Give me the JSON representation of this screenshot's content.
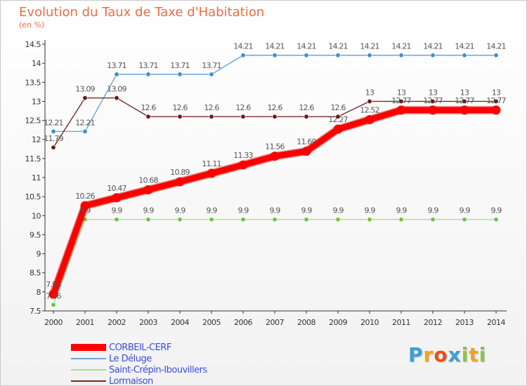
{
  "chart_data": {
    "type": "line",
    "title": "Evolution du Taux de Taxe d'Habitation",
    "ylabel": "(en %)",
    "xlabel": "",
    "x": [
      "2000",
      "2001",
      "2002",
      "2003",
      "2004",
      "2005",
      "2006",
      "2007",
      "2008",
      "2009",
      "2010",
      "2011",
      "2012",
      "2013",
      "2014"
    ],
    "ylim": [
      7.5,
      14.5
    ],
    "yticks": [
      "7.5",
      "8",
      "8.5",
      "9",
      "9.5",
      "10",
      "10.5",
      "11",
      "11.5",
      "12",
      "12.5",
      "13",
      "13.5",
      "14",
      "14.5"
    ],
    "grid": false,
    "series": [
      {
        "name": "CORBEIL-CERF",
        "color": "#ff0000",
        "marker_color": "#ff0000",
        "values": [
          7.94,
          10.26,
          10.47,
          10.68,
          10.89,
          11.11,
          11.33,
          11.56,
          11.69,
          12.27,
          12.52,
          12.77,
          12.77,
          12.77,
          12.77
        ],
        "labels": [
          "7.94",
          "10.26",
          "10.47",
          "10.68",
          "10.89",
          "11.11",
          "11.33",
          "11.56",
          "11.69",
          "12.27",
          "12.52",
          "12.77",
          "12.77",
          "12.77",
          "12.77"
        ]
      },
      {
        "name": "Le Déluge",
        "color": "#6aa5d8",
        "marker_color": "#3c8fd0",
        "values": [
          12.21,
          12.21,
          13.71,
          13.71,
          13.71,
          13.71,
          14.21,
          14.21,
          14.21,
          14.21,
          14.21,
          14.21,
          14.21,
          14.21,
          14.21
        ],
        "labels": [
          "12.21",
          "12.21",
          "13.71",
          "13.71",
          "13.71",
          "13.71",
          "14.21",
          "14.21",
          "14.21",
          "14.21",
          "14.21",
          "14.21",
          "14.21",
          "14.21",
          "14.21"
        ]
      },
      {
        "name": "Saint-Crépin-Ibouvillers",
        "color": "#a8e08a",
        "marker_color": "#6cc43c",
        "values": [
          7.66,
          9.9,
          9.9,
          9.9,
          9.9,
          9.9,
          9.9,
          9.9,
          9.9,
          9.9,
          9.9,
          9.9,
          9.9,
          9.9,
          9.9
        ],
        "labels": [
          "7.66",
          "9.9",
          "9.9",
          "9.9",
          "9.9",
          "9.9",
          "9.9",
          "9.9",
          "9.9",
          "9.9",
          "9.9",
          "9.9",
          "9.9",
          "9.9",
          "9.9"
        ]
      },
      {
        "name": "Lormaison",
        "color": "#7a2828",
        "marker_color": "#6a1a1a",
        "values": [
          11.79,
          13.09,
          13.09,
          12.6,
          12.6,
          12.6,
          12.6,
          12.6,
          12.6,
          12.6,
          13,
          13,
          13,
          13,
          13
        ],
        "labels": [
          "11.79",
          "13.09",
          "13.09",
          "12.6",
          "12.6",
          "12.6",
          "12.6",
          "12.6",
          "12.6",
          "12.6",
          "13",
          "13",
          "13",
          "13",
          "13"
        ]
      }
    ]
  },
  "brand": {
    "letters": [
      "P",
      "r",
      "o",
      "x",
      "i",
      "t",
      "i"
    ]
  }
}
